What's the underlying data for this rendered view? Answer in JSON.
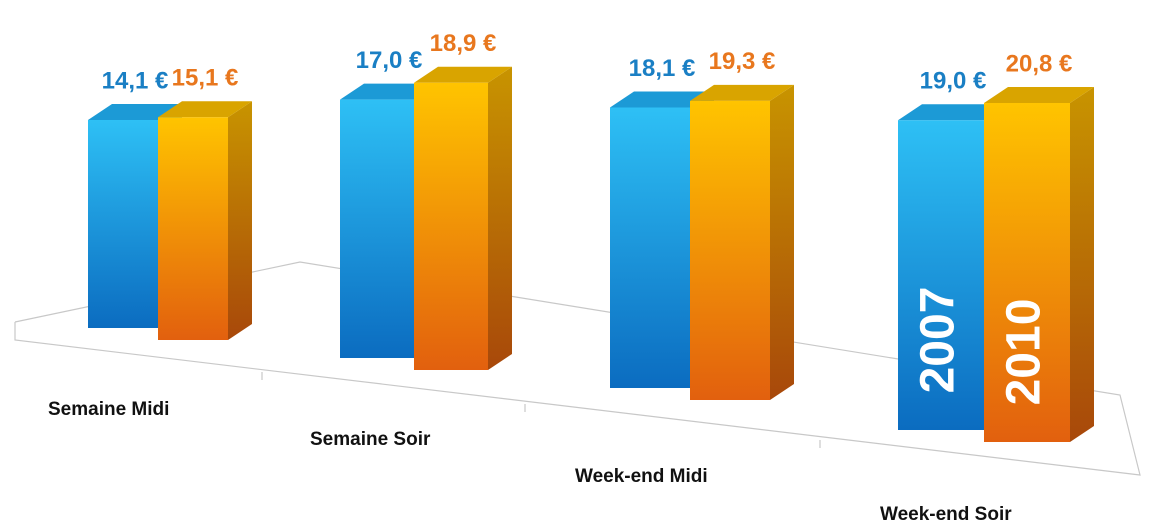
{
  "chart_data": {
    "type": "bar",
    "categories": [
      "Semaine Midi",
      "Semaine Soir",
      "Week-end Midi",
      "Week-end Soir"
    ],
    "series": [
      {
        "name": "2007",
        "color": "#1a8fd8",
        "values": [
          14.1,
          17.0,
          18.1,
          19.0
        ],
        "value_labels": [
          "14,1 €",
          "17,0 €",
          "18,1 €",
          "19,0 €"
        ]
      },
      {
        "name": "2010",
        "color": "#f08a1c",
        "values": [
          15.1,
          18.9,
          19.3,
          20.8
        ],
        "value_labels": [
          "15,1 €",
          "18,9 €",
          "19,3 €",
          "20,8 €"
        ]
      }
    ]
  }
}
